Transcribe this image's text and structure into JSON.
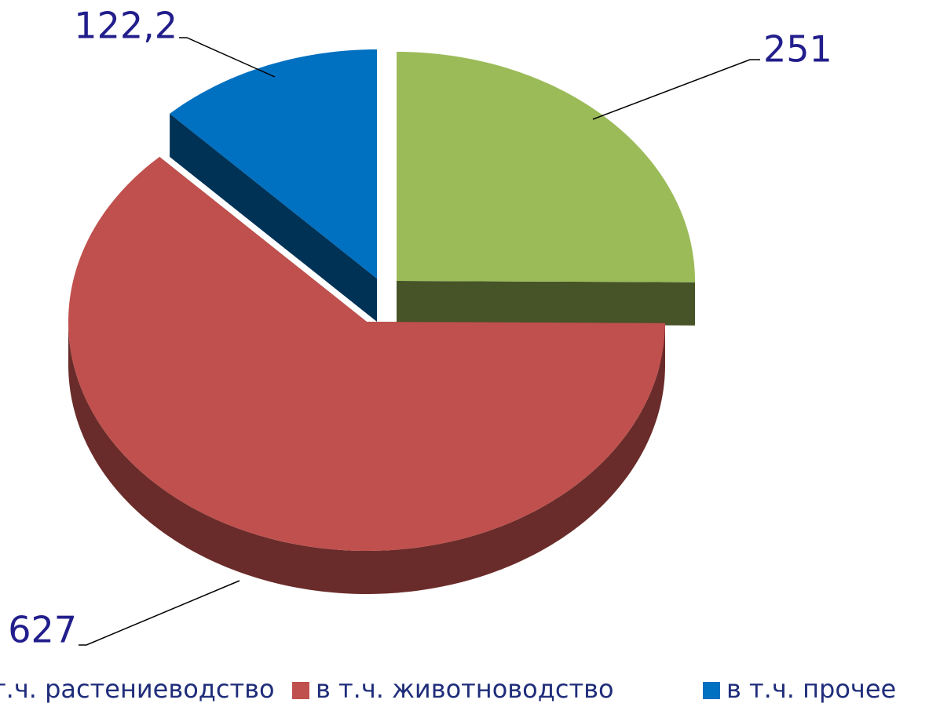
{
  "chart_data": {
    "type": "pie3d",
    "categories": [
      "в т.ч. растениеводство",
      "в т.ч. животноводство",
      "в т.ч. прочее"
    ],
    "values": [
      251,
      627,
      122.2
    ],
    "value_labels": [
      "251",
      "627",
      "122,2"
    ],
    "colors": [
      "#9bbb59",
      "#c0504d",
      "#0070c0"
    ],
    "legend": "bottom"
  }
}
